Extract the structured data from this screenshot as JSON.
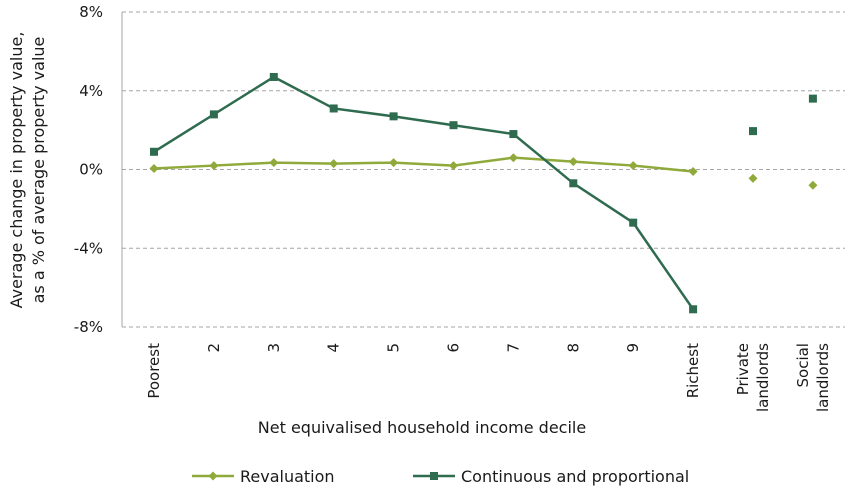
{
  "chart_data": {
    "type": "line",
    "ylabel_lines": [
      "Average change in property value,",
      "as a % of average property value"
    ],
    "xlabel": "Net equivalised household income decile",
    "ylim": [
      -8,
      8
    ],
    "yticks": [
      8,
      4,
      0,
      -4,
      -8
    ],
    "ytick_labels": [
      "8%",
      "4%",
      "0%",
      "-4%",
      "-8%"
    ],
    "grid": "horizontal dashed",
    "categories": [
      {
        "lines": [
          "Poorest"
        ]
      },
      {
        "lines": [
          "2"
        ]
      },
      {
        "lines": [
          "3"
        ]
      },
      {
        "lines": [
          "4"
        ]
      },
      {
        "lines": [
          "5"
        ]
      },
      {
        "lines": [
          "6"
        ]
      },
      {
        "lines": [
          "7"
        ]
      },
      {
        "lines": [
          "8"
        ]
      },
      {
        "lines": [
          "9"
        ]
      },
      {
        "lines": [
          "Richest"
        ]
      },
      {
        "lines": [
          "Private",
          "landlords"
        ]
      },
      {
        "lines": [
          "Social",
          "landlords"
        ]
      }
    ],
    "series": [
      {
        "name": "Revaluation",
        "color": "#8faa3b",
        "marker": "diamond",
        "values": [
          0.05,
          0.2,
          0.35,
          0.3,
          0.35,
          0.2,
          0.6,
          0.4,
          0.2,
          -0.1,
          -0.45,
          -0.8
        ],
        "connected_count": 10
      },
      {
        "name": "Continuous and proportional",
        "color": "#2e6b4f",
        "marker": "square",
        "values": [
          0.9,
          2.8,
          4.7,
          3.1,
          2.7,
          2.25,
          1.8,
          -0.7,
          -2.7,
          -7.1,
          1.95,
          3.6
        ],
        "connected_count": 10
      }
    ],
    "legend_position": "bottom"
  }
}
